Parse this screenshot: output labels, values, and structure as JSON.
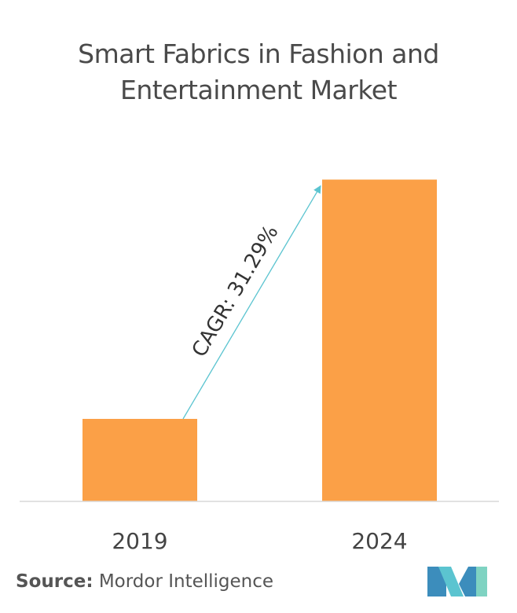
{
  "chart_data": {
    "type": "bar",
    "title_lines": [
      "Smart Fabrics in Fashion and",
      "Entertainment Market"
    ],
    "categories": [
      "2019",
      "2024"
    ],
    "values": [
      1.0,
      3.9
    ],
    "xlabel": "",
    "ylabel": "",
    "ylim": [
      0,
      4.0
    ],
    "grid": false,
    "legend": "none",
    "annotation": "CAGR: 31.29%",
    "bar_color": "#FBA047",
    "arrow_color": "#5BC4D0"
  },
  "source": {
    "label": "Source:",
    "text": "Mordor Intelligence"
  },
  "logo": {
    "icon": "mordor-intelligence-logo",
    "colors": [
      "#3C8DBC",
      "#5BC4D0",
      "#7FD3C2"
    ]
  }
}
